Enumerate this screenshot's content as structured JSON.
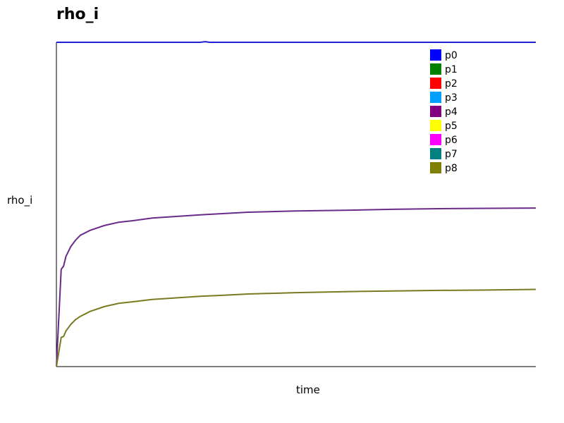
{
  "chart_data": {
    "type": "line",
    "title": "rho_i",
    "xlabel": "time",
    "ylabel": "rho_i",
    "xlim": [
      0,
      1
    ],
    "ylim": [
      0,
      1
    ],
    "grid": false,
    "legend_placement": "top-right",
    "series": [
      {
        "name": "p0",
        "color": "#0000ff",
        "values": []
      },
      {
        "name": "p1",
        "color": "#008000",
        "values": []
      },
      {
        "name": "p2",
        "color": "#ff0000",
        "values": []
      },
      {
        "name": "p3",
        "color": "#00a0ff",
        "values": []
      },
      {
        "name": "p4",
        "color": "#800080",
        "values": []
      },
      {
        "name": "p5",
        "color": "#ffff00",
        "values": []
      },
      {
        "name": "p6",
        "color": "#ff00ff",
        "values": []
      },
      {
        "name": "p7",
        "color": "#008080",
        "values": []
      },
      {
        "name": "p8",
        "color": "#808000",
        "values": []
      }
    ],
    "curves": [
      {
        "color": "#2020d0",
        "points": [
          [
            0,
            1
          ],
          [
            0.3,
            1
          ],
          [
            0.31,
            1.002
          ],
          [
            0.32,
            1
          ],
          [
            1,
            1
          ]
        ]
      },
      {
        "color": "#6a2a8a",
        "points": [
          [
            0,
            0
          ],
          [
            0.01,
            0.3
          ],
          [
            0.015,
            0.31
          ],
          [
            0.02,
            0.34
          ],
          [
            0.03,
            0.37
          ],
          [
            0.04,
            0.39
          ],
          [
            0.05,
            0.405
          ],
          [
            0.07,
            0.42
          ],
          [
            0.1,
            0.435
          ],
          [
            0.13,
            0.445
          ],
          [
            0.16,
            0.45
          ],
          [
            0.2,
            0.458
          ],
          [
            0.25,
            0.463
          ],
          [
            0.3,
            0.468
          ],
          [
            0.35,
            0.472
          ],
          [
            0.4,
            0.476
          ],
          [
            0.5,
            0.48
          ],
          [
            0.6,
            0.482
          ],
          [
            0.7,
            0.485
          ],
          [
            0.8,
            0.487
          ],
          [
            0.9,
            0.488
          ],
          [
            1,
            0.489
          ]
        ]
      },
      {
        "color": "#7a7a20",
        "points": [
          [
            0,
            0
          ],
          [
            0.01,
            0.09
          ],
          [
            0.015,
            0.093
          ],
          [
            0.02,
            0.11
          ],
          [
            0.03,
            0.13
          ],
          [
            0.04,
            0.145
          ],
          [
            0.05,
            0.155
          ],
          [
            0.07,
            0.17
          ],
          [
            0.1,
            0.185
          ],
          [
            0.13,
            0.195
          ],
          [
            0.16,
            0.2
          ],
          [
            0.2,
            0.207
          ],
          [
            0.25,
            0.212
          ],
          [
            0.3,
            0.217
          ],
          [
            0.35,
            0.22
          ],
          [
            0.4,
            0.224
          ],
          [
            0.5,
            0.228
          ],
          [
            0.6,
            0.231
          ],
          [
            0.7,
            0.233
          ],
          [
            0.8,
            0.235
          ],
          [
            0.9,
            0.236
          ],
          [
            1,
            0.238
          ]
        ]
      }
    ]
  }
}
